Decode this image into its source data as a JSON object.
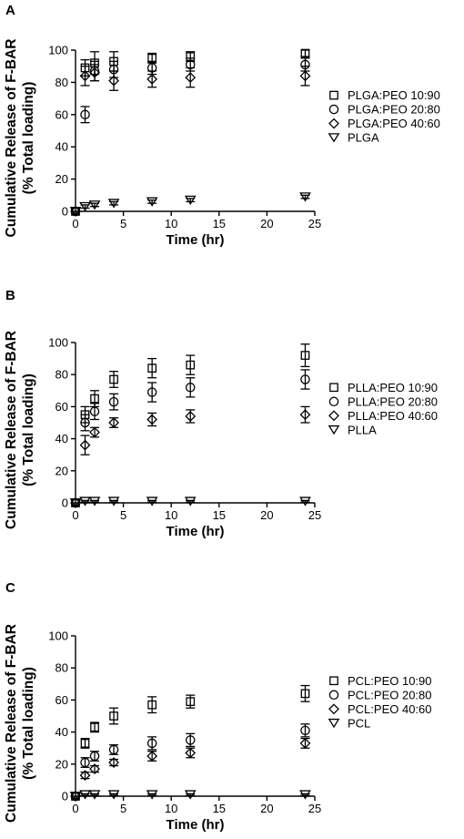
{
  "chart_data": [
    {
      "panel": "A",
      "type": "scatter",
      "xlabel": "Time (hr)",
      "ylabel_lines": [
        "Cumulative Release of F-BAR",
        "(% Total loading)"
      ],
      "xlim": [
        0,
        25
      ],
      "ylim": [
        0,
        100
      ],
      "xticks": [
        0,
        5,
        10,
        15,
        20,
        25
      ],
      "yticks": [
        0,
        20,
        40,
        60,
        80,
        100
      ],
      "legend_position": "right",
      "series": [
        {
          "name": "PLGA:PEO 10:90",
          "marker": "square",
          "x": [
            0,
            1,
            2,
            4,
            8,
            12,
            24
          ],
          "y": [
            0,
            89,
            92,
            93,
            95,
            96,
            98
          ],
          "err": [
            0,
            5,
            7,
            6,
            3,
            3,
            2
          ]
        },
        {
          "name": "PLGA:PEO 20:80",
          "marker": "circle",
          "x": [
            0,
            1,
            2,
            4,
            8,
            12,
            24
          ],
          "y": [
            0,
            60,
            87,
            88,
            89,
            91,
            91
          ],
          "err": [
            0,
            5,
            6,
            5,
            4,
            4,
            4
          ]
        },
        {
          "name": "PLGA:PEO 40:60",
          "marker": "diamond",
          "x": [
            0,
            1,
            2,
            4,
            8,
            12,
            24
          ],
          "y": [
            0,
            84,
            86,
            81,
            82,
            83,
            84
          ],
          "err": [
            0,
            6,
            5,
            6,
            5,
            6,
            6
          ]
        },
        {
          "name": "PLGA",
          "marker": "triangle-down",
          "x": [
            0,
            1,
            2,
            4,
            8,
            12,
            24
          ],
          "y": [
            0,
            3,
            4,
            5,
            6,
            7,
            9
          ],
          "err": [
            0,
            1,
            1,
            1,
            1,
            1,
            1
          ]
        }
      ]
    },
    {
      "panel": "B",
      "type": "scatter",
      "xlabel": "Time (hr)",
      "ylabel_lines": [
        "Cumulative Release of F-BAR",
        "(% Total loading)"
      ],
      "xlim": [
        0,
        25
      ],
      "ylim": [
        0,
        100
      ],
      "xticks": [
        0,
        5,
        10,
        15,
        20,
        25
      ],
      "yticks": [
        0,
        20,
        40,
        60,
        80,
        100
      ],
      "legend_position": "right",
      "series": [
        {
          "name": "PLLA:PEO 10:90",
          "marker": "square",
          "x": [
            0,
            1,
            2,
            4,
            8,
            12,
            24
          ],
          "y": [
            0,
            55,
            65,
            77,
            84,
            86,
            92
          ],
          "err": [
            0,
            5,
            5,
            5,
            6,
            6,
            7
          ]
        },
        {
          "name": "PLLA:PEO 20:80",
          "marker": "circle",
          "x": [
            0,
            1,
            2,
            4,
            8,
            12,
            24
          ],
          "y": [
            0,
            50,
            57,
            63,
            69,
            72,
            77
          ],
          "err": [
            0,
            5,
            5,
            5,
            6,
            6,
            6
          ]
        },
        {
          "name": "PLLA:PEO 40:60",
          "marker": "diamond",
          "x": [
            0,
            1,
            2,
            4,
            8,
            12,
            24
          ],
          "y": [
            0,
            36,
            44,
            50,
            52,
            54,
            55
          ],
          "err": [
            0,
            6,
            3,
            3,
            4,
            4,
            5
          ]
        },
        {
          "name": "PLLA",
          "marker": "triangle-down",
          "x": [
            0,
            1,
            2,
            4,
            8,
            12,
            24
          ],
          "y": [
            0,
            1,
            1,
            1,
            1,
            1,
            1
          ],
          "err": [
            0,
            0.5,
            0.5,
            0.5,
            0.5,
            0.5,
            0.5
          ]
        }
      ]
    },
    {
      "panel": "C",
      "type": "scatter",
      "xlabel": "Time (hr)",
      "ylabel_lines": [
        "Cumulative Release of F-BAR",
        "(% Total loading)"
      ],
      "xlim": [
        0,
        25
      ],
      "ylim": [
        0,
        100
      ],
      "xticks": [
        0,
        5,
        10,
        15,
        20,
        25
      ],
      "yticks": [
        0,
        20,
        40,
        60,
        80,
        100
      ],
      "legend_position": "right",
      "series": [
        {
          "name": "PCL:PEO 10:90",
          "marker": "square",
          "x": [
            0,
            1,
            2,
            4,
            8,
            12,
            24
          ],
          "y": [
            0,
            33,
            43,
            50,
            57,
            59,
            64
          ],
          "err": [
            0,
            3,
            3,
            5,
            5,
            4,
            5
          ]
        },
        {
          "name": "PCL:PEO 20:80",
          "marker": "circle",
          "x": [
            0,
            1,
            2,
            4,
            8,
            12,
            24
          ],
          "y": [
            0,
            21,
            25,
            29,
            33,
            35,
            41
          ],
          "err": [
            0,
            3,
            3,
            3,
            4,
            4,
            4
          ]
        },
        {
          "name": "PCL:PEO 40:60",
          "marker": "diamond",
          "x": [
            0,
            1,
            2,
            4,
            8,
            12,
            24
          ],
          "y": [
            0,
            13,
            17,
            21,
            25,
            27,
            33
          ],
          "err": [
            0,
            2,
            2,
            2,
            3,
            3,
            3
          ]
        },
        {
          "name": "PCL",
          "marker": "triangle-down",
          "x": [
            0,
            1,
            2,
            4,
            8,
            12,
            24
          ],
          "y": [
            0,
            1,
            1,
            1,
            1,
            1,
            1
          ],
          "err": [
            0,
            0.5,
            0.5,
            0.5,
            0.5,
            0.5,
            0.5
          ]
        }
      ]
    }
  ]
}
